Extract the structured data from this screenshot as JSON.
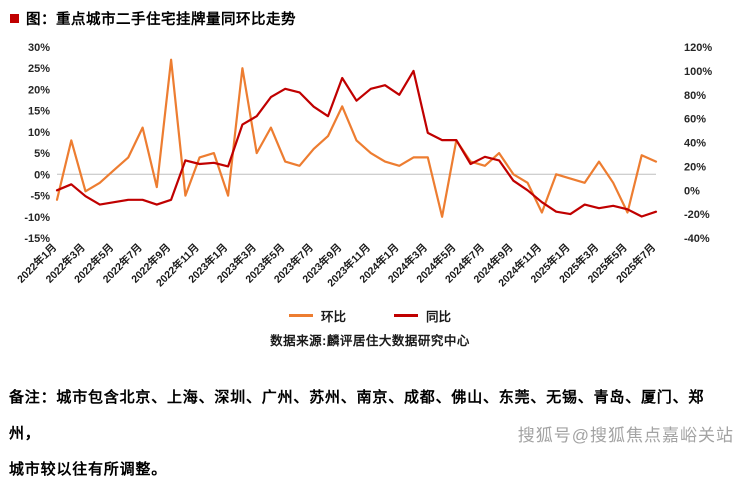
{
  "title": "图：重点城市二手住宅挂牌量同环比走势",
  "source": "数据来源:麟评居住大数据研究中心",
  "notes": {
    "line1": "备注：城市包含北京、上海、深圳、广州、苏州、南京、成都、佛山、东莞、无锡、青岛、厦门、郑州，",
    "line2": "城市较以往有所调整。"
  },
  "watermark": "搜狐号@搜狐焦点嘉峪关站",
  "colors": {
    "mom_line": "#ED7D31",
    "yoy_line": "#C00000",
    "title_bullet": "#C00000",
    "zero_line": "#bfbfbf",
    "axis_text": "#262626",
    "watermark_text": "#a3a3a3"
  },
  "chart_data": {
    "type": "line",
    "title": "重点城市二手住宅挂牌量同环比走势",
    "legend_position": "bottom",
    "grid": "zero-line-only",
    "x_tick_every": 2,
    "x": [
      "2022年1月",
      "2022年2月",
      "2022年3月",
      "2022年4月",
      "2022年5月",
      "2022年6月",
      "2022年7月",
      "2022年8月",
      "2022年9月",
      "2022年10月",
      "2022年11月",
      "2022年12月",
      "2023年1月",
      "2023年2月",
      "2023年3月",
      "2023年4月",
      "2023年5月",
      "2023年6月",
      "2023年7月",
      "2023年8月",
      "2023年9月",
      "2023年10月",
      "2023年11月",
      "2023年12月",
      "2024年1月",
      "2024年2月",
      "2024年3月",
      "2024年4月",
      "2024年5月",
      "2024年6月",
      "2024年7月",
      "2024年8月",
      "2024年9月",
      "2024年10月",
      "2024年11月",
      "2024年12月",
      "2025年1月",
      "2025年2月",
      "2025年3月",
      "2025年4月",
      "2025年5月",
      "2025年6月",
      "2025年7月"
    ],
    "left_axis": {
      "min": -15,
      "max": 30,
      "unit": "%",
      "ticks": [
        "30%",
        "25%",
        "20%",
        "15%",
        "10%",
        "5%",
        "0%",
        "-5%",
        "-10%",
        "-15%"
      ]
    },
    "right_axis": {
      "min": -40,
      "max": 120,
      "unit": "%",
      "ticks": [
        "120%",
        "100%",
        "80%",
        "60%",
        "40%",
        "20%",
        "0%",
        "-20%",
        "-40%"
      ]
    },
    "series": [
      {
        "key": "mom",
        "name": "环比",
        "axis": "left",
        "color": "#ED7D31",
        "values": [
          -6,
          8,
          -4,
          -2,
          1,
          4,
          11,
          -3,
          27,
          -5,
          4,
          5,
          -5,
          25,
          5,
          11,
          3,
          2,
          6,
          9,
          16,
          8,
          5,
          3,
          2,
          4,
          4,
          -10,
          8,
          3,
          2,
          5,
          0,
          -2,
          -9,
          0,
          -1,
          -2,
          3,
          -2,
          -9,
          4.5,
          3
        ]
      },
      {
        "key": "yoy",
        "name": "同比",
        "axis": "right",
        "color": "#C00000",
        "values": [
          0,
          5,
          -5,
          -12,
          -10,
          -8,
          -8,
          -12,
          -8,
          25,
          22,
          23,
          20,
          55,
          62,
          78,
          85,
          82,
          70,
          62,
          94,
          75,
          85,
          88,
          80,
          100,
          48,
          42,
          42,
          22,
          28,
          25,
          8,
          0,
          -10,
          -18,
          -20,
          -12,
          -15,
          -13,
          -16,
          -22,
          -18
        ]
      }
    ]
  }
}
